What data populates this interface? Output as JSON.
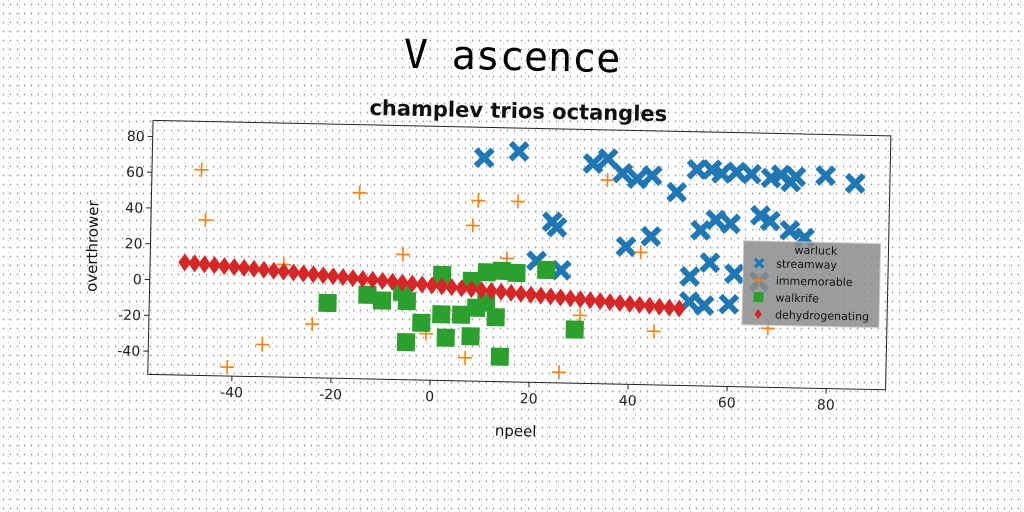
{
  "suptitle": "V ascence",
  "chart_data": {
    "type": "scatter",
    "title": "champlev trios octangles",
    "xlabel": "npeel",
    "ylabel": "overthrower",
    "xlim": [
      -57,
      92
    ],
    "ylim": [
      -53,
      89
    ],
    "xticks": [
      -40,
      -20,
      0,
      20,
      40,
      60,
      80
    ],
    "yticks": [
      -40,
      -20,
      0,
      20,
      40,
      60,
      80
    ],
    "grid": false,
    "legend": {
      "title": "warluck",
      "position": "right"
    },
    "series": [
      {
        "name": "streamway",
        "marker": "x-filled",
        "color": "#1f77b4",
        "points": [
          [
            10,
            72
          ],
          [
            17,
            76
          ],
          [
            32,
            70
          ],
          [
            35,
            73
          ],
          [
            38,
            65
          ],
          [
            41,
            62
          ],
          [
            44,
            64
          ],
          [
            49,
            55
          ],
          [
            53,
            68
          ],
          [
            56,
            68
          ],
          [
            58,
            66
          ],
          [
            61,
            67
          ],
          [
            64,
            66
          ],
          [
            68,
            64
          ],
          [
            70,
            66
          ],
          [
            72,
            62
          ],
          [
            73,
            65
          ],
          [
            79,
            66
          ],
          [
            85,
            62
          ],
          [
            24,
            37
          ],
          [
            25,
            34
          ],
          [
            39,
            24
          ],
          [
            44,
            30
          ],
          [
            54,
            34
          ],
          [
            57,
            40
          ],
          [
            60,
            38
          ],
          [
            66,
            43
          ],
          [
            68,
            40
          ],
          [
            72,
            35
          ],
          [
            75,
            31
          ],
          [
            21,
            15
          ],
          [
            26,
            10
          ],
          [
            56,
            16
          ],
          [
            52,
            8
          ],
          [
            61,
            10
          ],
          [
            66,
            6
          ],
          [
            52,
            -6
          ],
          [
            55,
            -8
          ],
          [
            60,
            -7
          ]
        ]
      },
      {
        "name": "immemorable",
        "marker": "plus",
        "color": "#ff7f0e",
        "points": [
          [
            -47,
            62
          ],
          [
            -46,
            34
          ],
          [
            -15,
            51
          ],
          [
            9,
            48
          ],
          [
            17,
            48
          ],
          [
            35,
            61
          ],
          [
            8,
            34
          ],
          [
            -6,
            17
          ],
          [
            15,
            16
          ],
          [
            42,
            21
          ],
          [
            -30,
            10
          ],
          [
            -24,
            -23
          ],
          [
            -34,
            -35
          ],
          [
            -41,
            -48
          ],
          [
            7,
            -40
          ],
          [
            26,
            -47
          ],
          [
            45,
            -23
          ],
          [
            68,
            -20
          ],
          [
            30,
            -15
          ],
          [
            -1,
            -27
          ]
        ]
      },
      {
        "name": "walkrife",
        "marker": "square",
        "color": "#2ca02c",
        "points": [
          [
            -21,
            -11
          ],
          [
            -10,
            -9
          ],
          [
            -5,
            -9
          ],
          [
            -2,
            -21
          ],
          [
            2,
            -16
          ],
          [
            6,
            -16
          ],
          [
            9,
            -12
          ],
          [
            11,
            -9
          ],
          [
            13,
            -17
          ],
          [
            3,
            -29
          ],
          [
            8,
            -28
          ],
          [
            -5,
            -32
          ],
          [
            14,
            -39
          ],
          [
            29,
            -23
          ],
          [
            2,
            6
          ],
          [
            8,
            3
          ],
          [
            11,
            8
          ],
          [
            14,
            9
          ],
          [
            17,
            8
          ],
          [
            23,
            10
          ],
          [
            -6,
            -4
          ],
          [
            -13,
            -6
          ]
        ]
      },
      {
        "name": "dehydrogenating",
        "marker": "diamond",
        "color": "#d62728",
        "points": [
          [
            -50,
            10
          ],
          [
            -48,
            9.6
          ],
          [
            -46,
            9.2
          ],
          [
            -44,
            8.8
          ],
          [
            -42,
            8.4
          ],
          [
            -40,
            8
          ],
          [
            -38,
            7.6
          ],
          [
            -36,
            7.2
          ],
          [
            -34,
            6.8
          ],
          [
            -32,
            6.4
          ],
          [
            -30,
            6
          ],
          [
            -28,
            5.6
          ],
          [
            -26,
            5.2
          ],
          [
            -24,
            4.8
          ],
          [
            -22,
            4.4
          ],
          [
            -20,
            4
          ],
          [
            -18,
            3.6
          ],
          [
            -16,
            3.2
          ],
          [
            -14,
            2.8
          ],
          [
            -12,
            2.4
          ],
          [
            -10,
            2
          ],
          [
            -8,
            1.6
          ],
          [
            -6,
            1.2
          ],
          [
            -4,
            0.8
          ],
          [
            -2,
            0.4
          ],
          [
            0,
            0
          ],
          [
            2,
            -0.4
          ],
          [
            4,
            -0.8
          ],
          [
            6,
            -1.2
          ],
          [
            8,
            -1.6
          ],
          [
            10,
            -2
          ],
          [
            12,
            -2.4
          ],
          [
            14,
            -2.8
          ],
          [
            16,
            -3.2
          ],
          [
            18,
            -3.6
          ],
          [
            20,
            -4
          ],
          [
            22,
            -4.4
          ],
          [
            24,
            -4.8
          ],
          [
            26,
            -5.2
          ],
          [
            28,
            -5.6
          ],
          [
            30,
            -6
          ],
          [
            32,
            -6.4
          ],
          [
            34,
            -6.8
          ],
          [
            36,
            -7.2
          ],
          [
            38,
            -7.6
          ],
          [
            40,
            -8
          ],
          [
            42,
            -8.4
          ],
          [
            44,
            -8.8
          ],
          [
            46,
            -9.2
          ],
          [
            48,
            -9.6
          ],
          [
            50,
            -10
          ]
        ]
      }
    ]
  }
}
